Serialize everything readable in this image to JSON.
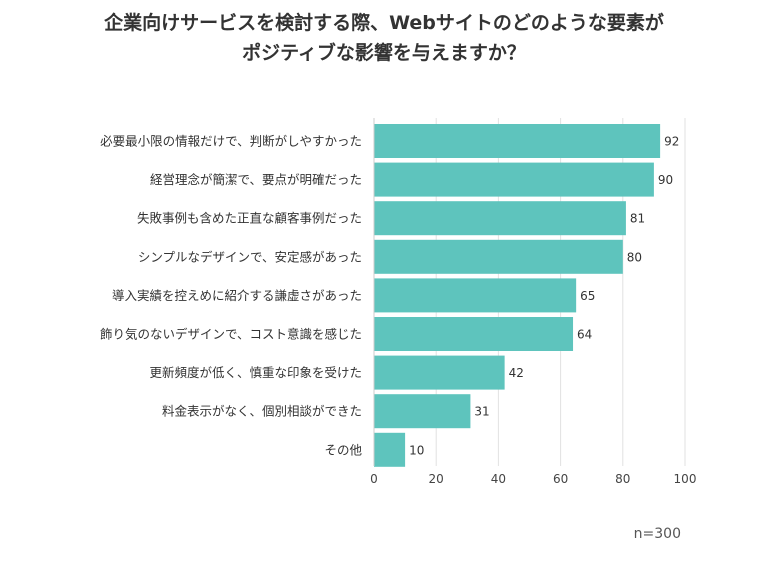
{
  "chart_data": {
    "type": "bar",
    "orientation": "horizontal",
    "title_lines": [
      "企業向けサービスを検討する際、Webサイトのどのような要素が",
      "ポジティブな影響を与えますか？"
    ],
    "categories": [
      "必要最小限の情報だけで、判断がしやすかった",
      "経営理念が簡潔で、要点が明確だった",
      "失敗事例も含めた正直な顧客事例だった",
      "シンプルなデザインで、安定感があった",
      "導入実績を控えめに紹介する謙虚さがあった",
      "飾り気のないデザインで、コスト意識を感じた",
      "更新頻度が低く、慎重な印象を受けた",
      "料金表示がなく、個別相談ができた",
      "その他"
    ],
    "values": [
      92,
      90,
      81,
      80,
      65,
      64,
      42,
      31,
      10
    ],
    "xlim": [
      0,
      100
    ],
    "xticks": [
      0,
      20,
      40,
      60,
      80,
      100
    ],
    "xlabel": "",
    "ylabel": "",
    "grid": true,
    "bar_color": "#5ec4bd",
    "note": "n=300"
  }
}
